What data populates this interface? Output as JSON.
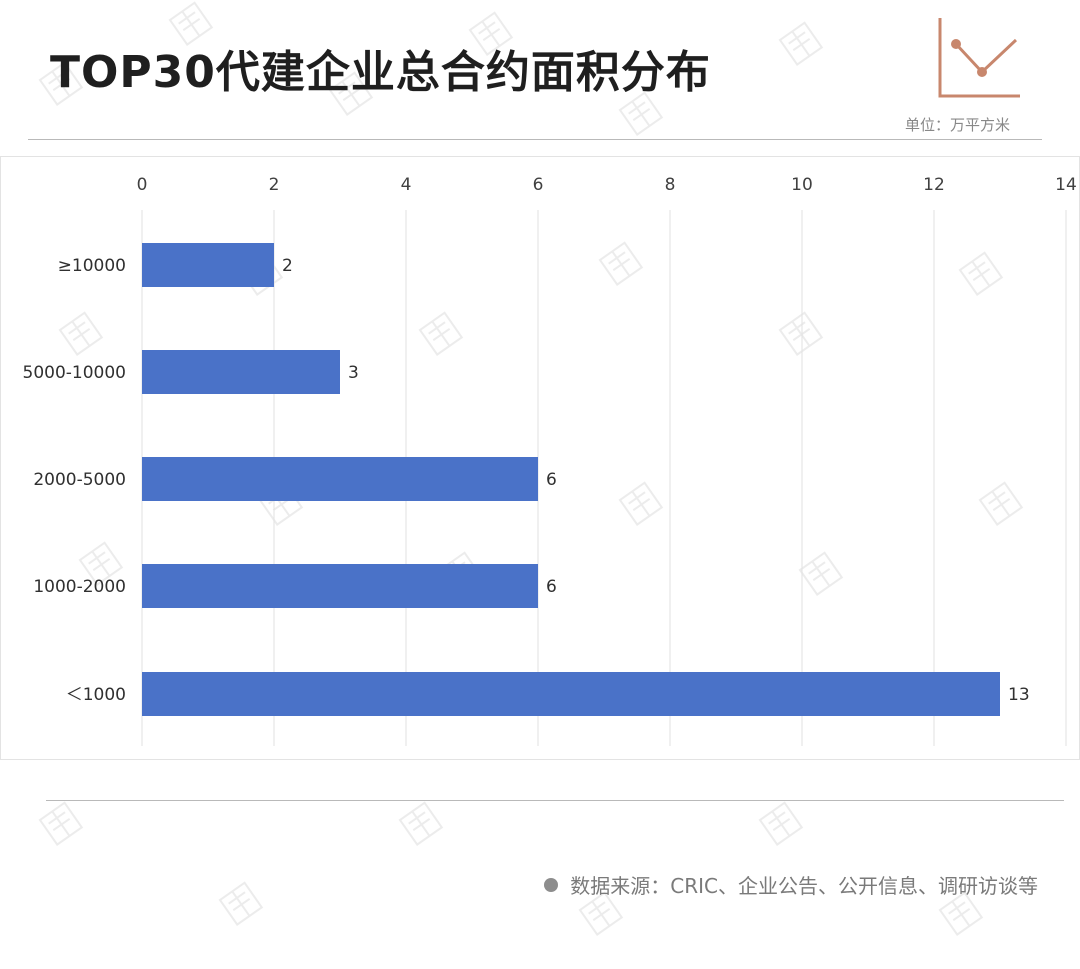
{
  "header": {
    "title": "TOP30代建企业总合约面积分布",
    "unit": "单位：万平方米"
  },
  "footer": {
    "source": "数据来源：CRIC、企业公告、公开信息、调研访谈等"
  },
  "icons": {
    "trend": "line-chart-icon",
    "source_bullet": "bullet-dot-icon"
  },
  "colors": {
    "bar": "#4a72c8",
    "accent": "#c8876d"
  },
  "chart_data": {
    "type": "bar",
    "orientation": "horizontal",
    "categories": [
      "≥10000",
      "5000-10000",
      "2000-5000",
      "1000-2000",
      "＜1000"
    ],
    "values": [
      2,
      3,
      6,
      6,
      13
    ],
    "xlim": [
      0,
      14
    ],
    "xticks": [
      0,
      2,
      4,
      6,
      8,
      10,
      12,
      14
    ],
    "x_axis_position": "top",
    "grid": true,
    "title": "",
    "xlabel": "",
    "ylabel": ""
  }
}
